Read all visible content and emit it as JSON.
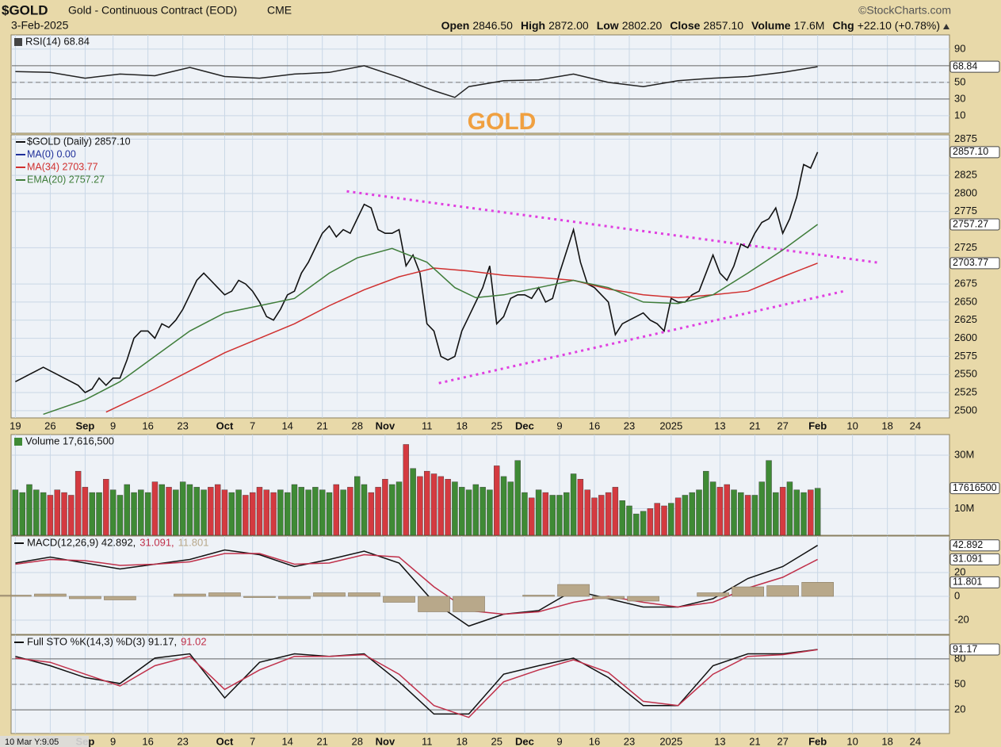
{
  "header": {
    "symbol": "$GOLD",
    "name": "Gold - Continuous Contract (EOD)",
    "exchange": "CME",
    "date": "3-Feb-2025",
    "source": "©StockCharts.com",
    "quote": [
      {
        "label": "Open",
        "value": "2846.50"
      },
      {
        "label": "High",
        "value": "2872.00"
      },
      {
        "label": "Low",
        "value": "2802.20"
      },
      {
        "label": "Close",
        "value": "2857.10"
      },
      {
        "label": "Volume",
        "value": "17.6M"
      },
      {
        "label": "Chg",
        "value": "+22.10 (+0.78%)"
      }
    ],
    "overlay": "10 Mar Y:9.05"
  },
  "chart_data": [
    {
      "type": "line",
      "title": "RSI(14) 68.84",
      "xlim": [
        -0.5,
        133.9
      ],
      "ylim": [
        -11,
        107
      ],
      "yticks": [
        10,
        30,
        50,
        90
      ],
      "levels": [
        30,
        70
      ],
      "midline": 50,
      "series": [
        {
          "name": "RSI(14)",
          "color": "#222222",
          "badge": "68.84",
          "x": [
            0,
            5,
            10,
            15,
            20,
            25,
            30,
            35,
            40,
            45,
            50,
            55,
            60,
            63,
            65,
            70,
            75,
            80,
            85,
            90,
            95,
            100,
            105,
            110,
            115
          ],
          "values": [
            63,
            62,
            55,
            60,
            58,
            68,
            57,
            55,
            60,
            62,
            70,
            56,
            40,
            32,
            45,
            52,
            53,
            60,
            50,
            45,
            52,
            55,
            57,
            62,
            68.84
          ]
        }
      ]
    },
    {
      "type": "line",
      "annotation": "GOLD",
      "legend": "stacked",
      "xlim": [
        -0.5,
        133.9
      ],
      "ylim": [
        2490,
        2881
      ],
      "yticks": [
        2500,
        2525,
        2550,
        2575,
        2600,
        2625,
        2650,
        2675,
        2725,
        2775,
        2800,
        2825,
        2875
      ],
      "xticks": [
        {
          "value": 0,
          "label": "19"
        },
        {
          "value": 5,
          "label": "26"
        },
        {
          "value": 10,
          "label": "Sep"
        },
        {
          "value": 14,
          "label": "9"
        },
        {
          "value": 19,
          "label": "16"
        },
        {
          "value": 24,
          "label": "23"
        },
        {
          "value": 30,
          "label": "Oct"
        },
        {
          "value": 34,
          "label": "7"
        },
        {
          "value": 39,
          "label": "14"
        },
        {
          "value": 44,
          "label": "21"
        },
        {
          "value": 49,
          "label": "28"
        },
        {
          "value": 53,
          "label": "Nov"
        },
        {
          "value": 59,
          "label": "11"
        },
        {
          "value": 64,
          "label": "18"
        },
        {
          "value": 69,
          "label": "25"
        },
        {
          "value": 73,
          "label": "Dec"
        },
        {
          "value": 78,
          "label": "9"
        },
        {
          "value": 83,
          "label": "16"
        },
        {
          "value": 88,
          "label": "23"
        },
        {
          "value": 94,
          "label": "2025"
        },
        {
          "value": 101,
          "label": "13"
        },
        {
          "value": 106,
          "label": "21"
        },
        {
          "value": 110,
          "label": "27"
        },
        {
          "value": 115,
          "label": "Feb"
        },
        {
          "value": 120,
          "label": "10"
        },
        {
          "value": 125,
          "label": "18"
        },
        {
          "value": 129,
          "label": "24"
        }
      ],
      "legend_only": [
        {
          "name": "MA(0) 0.00",
          "color": "#1f2f9a"
        }
      ],
      "series": [
        {
          "name": "$GOLD (Daily) 2857.10",
          "color": "#111111",
          "badge": "2857.10",
          "values": [
            2540,
            2545,
            2550,
            2555,
            2560,
            2555,
            2550,
            2545,
            2540,
            2535,
            2525,
            2530,
            2545,
            2535,
            2545,
            2545,
            2570,
            2600,
            2610,
            2610,
            2600,
            2620,
            2615,
            2625,
            2640,
            2660,
            2680,
            2690,
            2680,
            2670,
            2660,
            2665,
            2680,
            2675,
            2665,
            2650,
            2630,
            2625,
            2640,
            2660,
            2665,
            2690,
            2705,
            2725,
            2745,
            2755,
            2740,
            2750,
            2745,
            2765,
            2785,
            2780,
            2750,
            2745,
            2745,
            2750,
            2700,
            2715,
            2690,
            2620,
            2610,
            2575,
            2570,
            2575,
            2610,
            2630,
            2650,
            2670,
            2700,
            2620,
            2630,
            2655,
            2660,
            2660,
            2655,
            2670,
            2650,
            2655,
            2690,
            2720,
            2750,
            2705,
            2675,
            2670,
            2660,
            2650,
            2605,
            2620,
            2625,
            2630,
            2635,
            2625,
            2620,
            2610,
            2655,
            2650,
            2650,
            2660,
            2665,
            2690,
            2715,
            2690,
            2680,
            2700,
            2730,
            2725,
            2745,
            2760,
            2765,
            2780,
            2745,
            2765,
            2795,
            2840,
            2835,
            2857.1
          ]
        },
        {
          "name": "MA(34) 2703.77",
          "color": "#d0302f",
          "badge": "2703.77",
          "x": [
            13,
            20,
            25,
            30,
            35,
            40,
            45,
            50,
            55,
            60,
            65,
            70,
            75,
            80,
            85,
            90,
            95,
            100,
            105,
            110,
            115
          ],
          "values": [
            2498,
            2530,
            2555,
            2580,
            2600,
            2620,
            2645,
            2667,
            2685,
            2697,
            2693,
            2687,
            2684,
            2680,
            2668,
            2660,
            2656,
            2660,
            2665,
            2685,
            2703.77
          ]
        },
        {
          "name": "EMA(20) 2757.27",
          "color": "#3f7d3a",
          "badge": "2757.27",
          "x": [
            4,
            10,
            15,
            20,
            25,
            30,
            35,
            40,
            45,
            49,
            54,
            59,
            63,
            66,
            70,
            75,
            80,
            85,
            90,
            95,
            100,
            105,
            110,
            115
          ],
          "values": [
            2495,
            2515,
            2540,
            2575,
            2610,
            2635,
            2645,
            2655,
            2690,
            2711,
            2724,
            2705,
            2670,
            2656,
            2660,
            2670,
            2680,
            2670,
            2650,
            2648,
            2660,
            2690,
            2722,
            2757.27
          ]
        }
      ],
      "trendline_color": "#e040e0",
      "trendlines": [
        {
          "x": [
            47.5,
            124
          ],
          "values": [
            2803,
            2704
          ]
        },
        {
          "x": [
            60.7,
            119.2
          ],
          "values": [
            2538,
            2666
          ]
        }
      ]
    },
    {
      "type": "bar",
      "title": "Volume 17,616,500",
      "xlim": [
        -0.5,
        133.9
      ],
      "ylim": [
        0,
        37.7
      ],
      "yticks": [
        {
          "value": 10,
          "label": "10M"
        },
        {
          "value": 30,
          "label": "30M"
        }
      ],
      "up_color": "#3f8a35",
      "down_color": "#d43a40",
      "series": [
        {
          "name": "Volume",
          "badge": "17616500",
          "values": [
            17,
            16,
            19,
            17,
            16,
            15,
            17,
            16,
            15,
            24,
            18,
            16,
            16,
            21,
            17,
            15,
            19,
            16,
            17,
            16,
            20,
            19,
            18,
            17,
            20,
            19,
            18,
            17,
            18,
            19,
            17,
            16,
            17,
            15,
            16,
            18,
            17,
            16,
            17,
            16,
            19,
            18,
            17,
            18,
            17,
            16,
            19,
            17,
            18,
            22,
            19,
            16,
            18,
            21,
            19,
            20,
            34,
            25,
            22,
            24,
            23,
            22,
            21,
            20,
            18,
            17,
            19,
            18,
            17,
            26,
            22,
            20,
            28,
            16,
            14,
            17,
            16,
            15,
            15,
            16,
            23,
            21,
            17,
            14,
            15,
            16,
            18,
            13,
            11,
            8,
            9,
            10,
            12,
            11,
            12,
            14,
            15,
            16,
            17,
            24,
            20,
            18,
            19,
            17,
            16,
            15,
            15,
            20,
            28,
            16,
            18,
            20,
            17,
            16,
            17,
            17.6165
          ]
        }
      ]
    },
    {
      "type": "line",
      "xlim": [
        -0.5,
        133.9
      ],
      "ylim": [
        -32,
        50.7
      ],
      "yticks": [
        -20,
        0,
        20
      ],
      "series": [
        {
          "name": "MACD(12,26,9) 42.892,",
          "color": "#111111",
          "badge": "42.892",
          "x": [
            0,
            5,
            10,
            15,
            20,
            25,
            30,
            35,
            40,
            45,
            50,
            55,
            60,
            65,
            70,
            75,
            80,
            85,
            90,
            95,
            100,
            105,
            110,
            115
          ],
          "values": [
            28,
            33,
            28,
            23,
            27,
            31,
            39,
            35,
            25,
            31,
            38,
            28,
            -5,
            -25,
            -15,
            -12,
            5,
            -2,
            -9,
            -9,
            -2,
            15,
            25,
            42.892
          ]
        },
        {
          "name": "31.091,",
          "color": "#c0304a",
          "badge": "31.091",
          "x": [
            0,
            5,
            10,
            15,
            20,
            25,
            30,
            35,
            40,
            45,
            50,
            55,
            60,
            65,
            70,
            75,
            80,
            85,
            90,
            95,
            100,
            105,
            110,
            115
          ],
          "values": [
            27,
            31,
            30,
            26,
            27,
            29,
            36,
            36,
            27,
            28,
            35,
            33,
            8,
            -12,
            -15,
            -13,
            -5,
            0,
            -5,
            -9,
            -5,
            7,
            16,
            31.091
          ]
        },
        {
          "name": "11.801",
          "color": "#b8a88a",
          "style": "bar",
          "badge": "11.801",
          "x": [
            0,
            5,
            10,
            15,
            20,
            25,
            30,
            35,
            40,
            45,
            50,
            55,
            60,
            65,
            70,
            75,
            80,
            85,
            90,
            95,
            100,
            105,
            110,
            115
          ],
          "values": [
            1,
            2,
            -2,
            -3,
            0,
            2,
            3,
            -1,
            -2,
            3,
            3,
            -5,
            -13,
            -13,
            0,
            1,
            10,
            -2,
            -4,
            0,
            3,
            8,
            9,
            11.801
          ]
        }
      ]
    },
    {
      "type": "line",
      "xlim": [
        -0.5,
        133.9
      ],
      "ylim": [
        -8,
        108
      ],
      "yticks": [
        20,
        50,
        80
      ],
      "levels": [
        20,
        80
      ],
      "midline": 50,
      "xticks": [
        {
          "value": 0,
          "label": "19"
        },
        {
          "value": 5,
          "label": "26"
        },
        {
          "value": 10,
          "label": "Sep"
        },
        {
          "value": 14,
          "label": "9"
        },
        {
          "value": 19,
          "label": "16"
        },
        {
          "value": 24,
          "label": "23"
        },
        {
          "value": 30,
          "label": "Oct"
        },
        {
          "value": 34,
          "label": "7"
        },
        {
          "value": 39,
          "label": "14"
        },
        {
          "value": 44,
          "label": "21"
        },
        {
          "value": 49,
          "label": "28"
        },
        {
          "value": 53,
          "label": "Nov"
        },
        {
          "value": 59,
          "label": "11"
        },
        {
          "value": 64,
          "label": "18"
        },
        {
          "value": 69,
          "label": "25"
        },
        {
          "value": 73,
          "label": "Dec"
        },
        {
          "value": 78,
          "label": "9"
        },
        {
          "value": 83,
          "label": "16"
        },
        {
          "value": 88,
          "label": "23"
        },
        {
          "value": 94,
          "label": "2025"
        },
        {
          "value": 101,
          "label": "13"
        },
        {
          "value": 106,
          "label": "21"
        },
        {
          "value": 110,
          "label": "27"
        },
        {
          "value": 115,
          "label": "Feb"
        },
        {
          "value": 120,
          "label": "10"
        },
        {
          "value": 125,
          "label": "18"
        },
        {
          "value": 129,
          "label": "24"
        }
      ],
      "series": [
        {
          "name": "Full STO %K(14,3) %D(3) 91.17,",
          "color": "#111111",
          "badge": "91.17",
          "x": [
            0,
            5,
            10,
            15,
            20,
            25,
            30,
            35,
            40,
            45,
            50,
            55,
            60,
            65,
            70,
            75,
            80,
            85,
            90,
            95,
            100,
            105,
            110,
            115
          ],
          "values": [
            83,
            72,
            58,
            51,
            81,
            86,
            34,
            76,
            86,
            83,
            86,
            53,
            15,
            15,
            62,
            72,
            81,
            58,
            25,
            25,
            72,
            86,
            86,
            91.17
          ]
        },
        {
          "name": "91.02",
          "color": "#c0304a",
          "x": [
            0,
            5,
            10,
            15,
            20,
            25,
            30,
            35,
            40,
            45,
            50,
            55,
            60,
            65,
            70,
            75,
            80,
            85,
            90,
            95,
            100,
            105,
            110,
            115
          ],
          "values": [
            81,
            76,
            62,
            48,
            72,
            83,
            44,
            67,
            83,
            83,
            85,
            62,
            25,
            11,
            53,
            67,
            79,
            64,
            30,
            25,
            62,
            83,
            85,
            91.02
          ]
        }
      ]
    }
  ]
}
